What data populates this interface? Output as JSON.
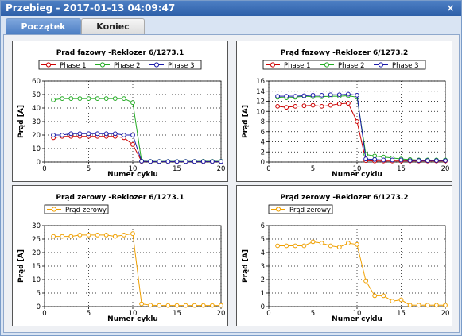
{
  "window": {
    "title": "Przebieg - 2017-01-13 04:09:47",
    "close_glyph": "×"
  },
  "tabs": [
    {
      "label": "Początek",
      "active": true
    },
    {
      "label": "Koniec",
      "active": false
    }
  ],
  "charts": [
    {
      "title": "Prąd fazowy -Reklozer 6/1273.1",
      "xlabel": "Numer cyklu",
      "ylabel": "Prąd [A]",
      "xlim": [
        0,
        20
      ],
      "ylim": [
        0,
        60
      ],
      "xticks": [
        0,
        5,
        10,
        15,
        20
      ],
      "yticks": [
        0,
        10,
        20,
        30,
        40,
        50,
        60
      ],
      "series": [
        {
          "name": "Phase 1",
          "color": "#cc0000",
          "x": [
            1,
            2,
            3,
            4,
            5,
            6,
            7,
            8,
            9,
            10,
            11,
            12,
            13,
            14,
            15,
            16,
            17,
            18,
            19,
            20
          ],
          "y": [
            18,
            19,
            19,
            19,
            19,
            19,
            19,
            19,
            18,
            13,
            0.5,
            0.3,
            0.3,
            0.3,
            0.3,
            0.3,
            0.3,
            0.3,
            0.3,
            0.3
          ]
        },
        {
          "name": "Phase 2",
          "color": "#22aa22",
          "x": [
            1,
            2,
            3,
            4,
            5,
            6,
            7,
            8,
            9,
            10,
            11,
            12,
            13,
            14,
            15,
            16,
            17,
            18,
            19,
            20
          ],
          "y": [
            46,
            47,
            47,
            47,
            47,
            47,
            47,
            47,
            47,
            44,
            0.7,
            0.5,
            0.5,
            0.5,
            0.5,
            0.5,
            0.5,
            0.6,
            0.6,
            0.6
          ]
        },
        {
          "name": "Phase 3",
          "color": "#1a1aa8",
          "x": [
            1,
            2,
            3,
            4,
            5,
            6,
            7,
            8,
            9,
            10,
            11,
            12,
            13,
            14,
            15,
            16,
            17,
            18,
            19,
            20
          ],
          "y": [
            20,
            20,
            21,
            21,
            21,
            21,
            21,
            21,
            20,
            20,
            0.6,
            0.4,
            0.4,
            0.4,
            0.4,
            0.4,
            0.4,
            0.4,
            0.4,
            0.4
          ]
        }
      ]
    },
    {
      "title": "Prąd fazowy -Reklozer 6/1273.2",
      "xlabel": "Numer cyklu",
      "ylabel": "Prąd [A]",
      "xlim": [
        0,
        20
      ],
      "ylim": [
        0,
        16
      ],
      "xticks": [
        0,
        5,
        10,
        15,
        20
      ],
      "yticks": [
        0,
        2,
        4,
        6,
        8,
        10,
        12,
        14,
        16
      ],
      "series": [
        {
          "name": "Phase 1",
          "color": "#cc0000",
          "x": [
            1,
            2,
            3,
            4,
            5,
            6,
            7,
            8,
            9,
            10,
            11,
            12,
            13,
            14,
            15,
            16,
            17,
            18,
            19,
            20
          ],
          "y": [
            11,
            10.8,
            11,
            11.1,
            11.2,
            11,
            11.2,
            11.5,
            11.6,
            8,
            0.3,
            0.2,
            0.2,
            0.2,
            0.2,
            0.2,
            0.2,
            0.2,
            0.2,
            0.2
          ]
        },
        {
          "name": "Phase 2",
          "color": "#22aa22",
          "x": [
            1,
            2,
            3,
            4,
            5,
            6,
            7,
            8,
            9,
            10,
            11,
            12,
            13,
            14,
            15,
            16,
            17,
            18,
            19,
            20
          ],
          "y": [
            12.8,
            12.7,
            12.8,
            13,
            12.9,
            12.9,
            13,
            13,
            13.1,
            12.8,
            1.5,
            1.2,
            1,
            0.8,
            0.6,
            0.5,
            0.4,
            0.4,
            0.4,
            0.4
          ]
        },
        {
          "name": "Phase 3",
          "color": "#1a1aa8",
          "x": [
            1,
            2,
            3,
            4,
            5,
            6,
            7,
            8,
            9,
            10,
            11,
            12,
            13,
            14,
            15,
            16,
            17,
            18,
            19,
            20
          ],
          "y": [
            13,
            13,
            13,
            13.1,
            13.2,
            13.2,
            13.3,
            13.3,
            13.4,
            13.2,
            0.6,
            0.5,
            0.4,
            0.4,
            0.4,
            0.3,
            0.3,
            0.3,
            0.3,
            0.3
          ]
        }
      ]
    },
    {
      "title": "Prąd zerowy -Reklozer 6/1273.1",
      "xlabel": "Numer cyklu",
      "ylabel": "Prąd [A]",
      "xlim": [
        0,
        20
      ],
      "ylim": [
        0,
        30
      ],
      "xticks": [
        0,
        5,
        10,
        15,
        20
      ],
      "yticks": [
        0,
        5,
        10,
        15,
        20,
        25,
        30
      ],
      "series": [
        {
          "name": "Prąd zerowy",
          "color": "#f0a000",
          "x": [
            1,
            2,
            3,
            4,
            5,
            6,
            7,
            8,
            9,
            10,
            11,
            12,
            13,
            14,
            15,
            16,
            17,
            18,
            19,
            20
          ],
          "y": [
            26,
            26,
            26,
            26.5,
            26.5,
            26.5,
            26.5,
            26,
            26.5,
            27,
            1,
            0.5,
            0.4,
            0.4,
            0.4,
            0.4,
            0.4,
            0.4,
            0.4,
            0.4
          ]
        }
      ]
    },
    {
      "title": "Prąd zerowy -Reklozer 6/1273.2",
      "xlabel": "Numer cyklu",
      "ylabel": "Prąd [A]",
      "xlim": [
        0,
        20
      ],
      "ylim": [
        0,
        6
      ],
      "xticks": [
        0,
        5,
        10,
        15,
        20
      ],
      "yticks": [
        0,
        1,
        2,
        3,
        4,
        5,
        6
      ],
      "series": [
        {
          "name": "Prąd zerowy",
          "color": "#f0a000",
          "x": [
            1,
            2,
            3,
            4,
            5,
            6,
            7,
            8,
            9,
            10,
            11,
            12,
            13,
            14,
            15,
            16,
            17,
            18,
            19,
            20
          ],
          "y": [
            4.5,
            4.5,
            4.5,
            4.5,
            4.8,
            4.7,
            4.5,
            4.4,
            4.7,
            4.6,
            1.9,
            0.8,
            0.8,
            0.4,
            0.5,
            0.1,
            0.1,
            0.1,
            0.1,
            0.1
          ]
        }
      ]
    }
  ]
}
